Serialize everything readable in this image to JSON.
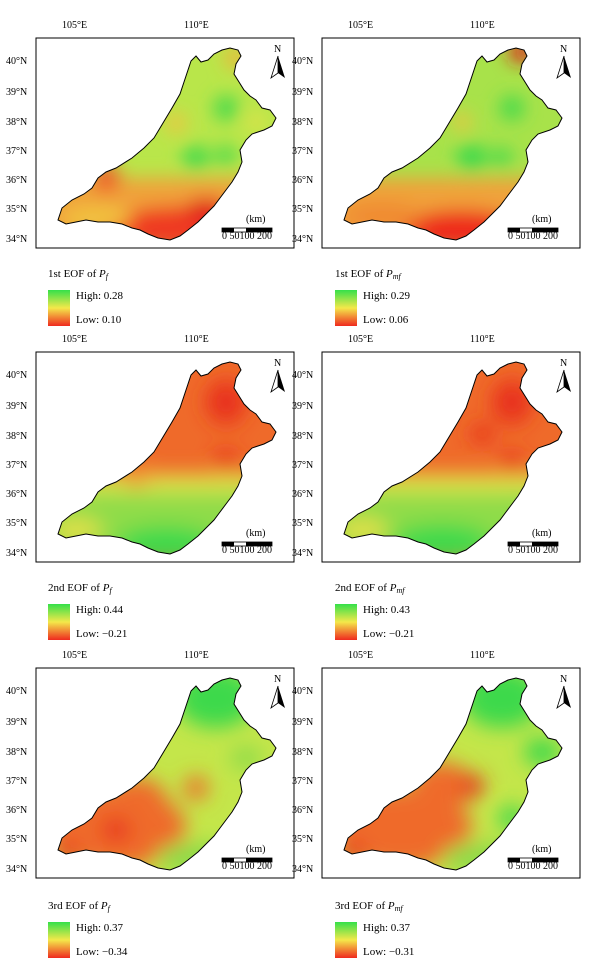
{
  "longitude_labels": [
    "105°E",
    "110°E"
  ],
  "latitude_labels": [
    "40°N",
    "39°N",
    "38°N",
    "37°N",
    "36°N",
    "35°N",
    "34°N"
  ],
  "north_label": "N",
  "scale": {
    "unit": "(km)",
    "ticks": "0 50100 200"
  },
  "palette": {
    "high": "#35e04a",
    "mid": "#f4e84a",
    "low": "#ef2a1f"
  },
  "panels": [
    {
      "title_prefix": "1st EOF of ",
      "var": "P",
      "sub": "f",
      "high": "High: 0.28",
      "low": "Low: 0.10"
    },
    {
      "title_prefix": "1st EOF of ",
      "var": "P",
      "sub": "mf",
      "high": "High: 0.29",
      "low": "Low: 0.06"
    },
    {
      "title_prefix": "2nd EOF of ",
      "var": "P",
      "sub": "f",
      "high": "High: 0.44",
      "low": "Low: −0.21"
    },
    {
      "title_prefix": "2nd EOF of ",
      "var": "P",
      "sub": "mf",
      "high": "High: 0.43",
      "low": "Low: −0.21"
    },
    {
      "title_prefix": "3rd EOF of ",
      "var": "P",
      "sub": "f",
      "high": "High: 0.37",
      "low": "Low: −0.34"
    },
    {
      "title_prefix": "3rd EOF of ",
      "var": "P",
      "sub": "mf",
      "high": "High: 0.37",
      "low": "Low: −0.31"
    }
  ]
}
